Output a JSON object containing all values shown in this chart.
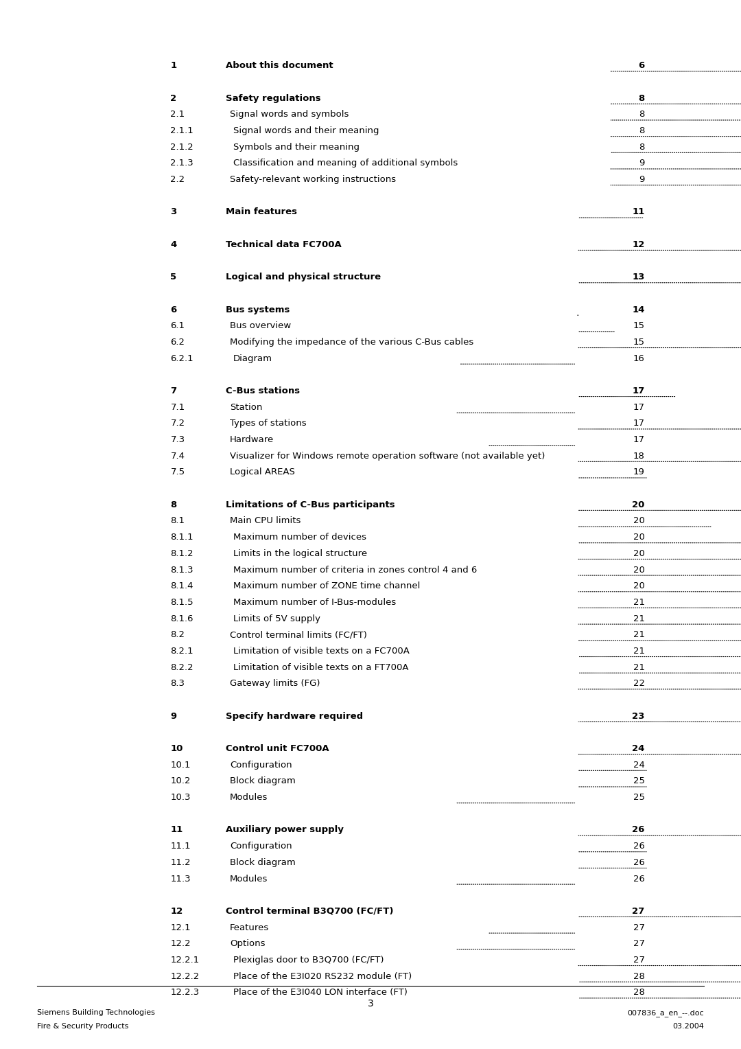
{
  "bg_color": "#ffffff",
  "text_color": "#000000",
  "page_number": "3",
  "footer_left_line1": "Siemens Building Technologies",
  "footer_left_line2": "Fire & Security Products",
  "footer_right_line1": "007836_a_en_--.doc",
  "footer_right_line2": "03.2004",
  "entries": [
    {
      "num": "1",
      "title": "About this document",
      "page": "6",
      "bold": true,
      "indent": 0
    },
    {
      "num": "",
      "title": "",
      "page": "",
      "bold": false,
      "indent": 0
    },
    {
      "num": "2",
      "title": "Safety regulations",
      "page": "8",
      "bold": true,
      "indent": 0
    },
    {
      "num": "2.1",
      "title": "Signal words and symbols",
      "page": "8",
      "bold": false,
      "indent": 1
    },
    {
      "num": "2.1.1",
      "title": "Signal words and their meaning",
      "page": "8",
      "bold": false,
      "indent": 2
    },
    {
      "num": "2.1.2",
      "title": "Symbols and their meaning",
      "page": "8",
      "bold": false,
      "indent": 2
    },
    {
      "num": "2.1.3",
      "title": "Classification and meaning of additional symbols",
      "page": "9",
      "bold": false,
      "indent": 2
    },
    {
      "num": "2.2",
      "title": "Safety-relevant working instructions",
      "page": "9",
      "bold": false,
      "indent": 1
    },
    {
      "num": "",
      "title": "",
      "page": "",
      "bold": false,
      "indent": 0
    },
    {
      "num": "3",
      "title": "Main features",
      "page": "11",
      "bold": true,
      "indent": 0
    },
    {
      "num": "",
      "title": "",
      "page": "",
      "bold": false,
      "indent": 0
    },
    {
      "num": "4",
      "title": "Technical data FC700A",
      "page": "12",
      "bold": true,
      "indent": 0
    },
    {
      "num": "",
      "title": "",
      "page": "",
      "bold": false,
      "indent": 0
    },
    {
      "num": "5",
      "title": "Logical and physical structure",
      "page": "13",
      "bold": true,
      "indent": 0
    },
    {
      "num": "",
      "title": "",
      "page": "",
      "bold": false,
      "indent": 0
    },
    {
      "num": "6",
      "title": "Bus systems",
      "page": "14",
      "bold": true,
      "indent": 0
    },
    {
      "num": "6.1",
      "title": "Bus overview",
      "page": "15",
      "bold": false,
      "indent": 1
    },
    {
      "num": "6.2",
      "title": "Modifying the impedance of the various C-Bus cables",
      "page": "15",
      "bold": false,
      "indent": 1
    },
    {
      "num": "6.2.1",
      "title": "Diagram",
      "page": "16",
      "bold": false,
      "indent": 2
    },
    {
      "num": "",
      "title": "",
      "page": "",
      "bold": false,
      "indent": 0
    },
    {
      "num": "7",
      "title": "C-Bus stations",
      "page": "17",
      "bold": true,
      "indent": 0
    },
    {
      "num": "7.1",
      "title": "Station",
      "page": "17",
      "bold": false,
      "indent": 1
    },
    {
      "num": "7.2",
      "title": "Types of stations",
      "page": "17",
      "bold": false,
      "indent": 1
    },
    {
      "num": "7.3",
      "title": "Hardware",
      "page": "17",
      "bold": false,
      "indent": 1
    },
    {
      "num": "7.4",
      "title": "Visualizer for Windows remote operation software (not available yet)",
      "page": "18",
      "bold": false,
      "indent": 1
    },
    {
      "num": "7.5",
      "title": "Logical AREAS",
      "page": "19",
      "bold": false,
      "indent": 1
    },
    {
      "num": "",
      "title": "",
      "page": "",
      "bold": false,
      "indent": 0
    },
    {
      "num": "8",
      "title": "Limitations of C-Bus participants",
      "page": "20",
      "bold": true,
      "indent": 0
    },
    {
      "num": "8.1",
      "title": "Main CPU limits",
      "page": "20",
      "bold": false,
      "indent": 1
    },
    {
      "num": "8.1.1",
      "title": "Maximum number of devices",
      "page": "20",
      "bold": false,
      "indent": 2
    },
    {
      "num": "8.1.2",
      "title": "Limits in the logical structure",
      "page": "20",
      "bold": false,
      "indent": 2
    },
    {
      "num": "8.1.3",
      "title": "Maximum number of criteria in zones control 4 and 6",
      "page": "20",
      "bold": false,
      "indent": 2
    },
    {
      "num": "8.1.4",
      "title": "Maximum number of ZONE time channel",
      "page": "20",
      "bold": false,
      "indent": 2
    },
    {
      "num": "8.1.5",
      "title": "Maximum number of I-Bus-modules",
      "page": "21",
      "bold": false,
      "indent": 2
    },
    {
      "num": "8.1.6",
      "title": "Limits of 5V supply",
      "page": "21",
      "bold": false,
      "indent": 2
    },
    {
      "num": "8.2",
      "title": "Control terminal limits (FC/FT)",
      "page": "21",
      "bold": false,
      "indent": 1
    },
    {
      "num": "8.2.1",
      "title": "Limitation of visible texts on a FC700A",
      "page": "21",
      "bold": false,
      "indent": 2
    },
    {
      "num": "8.2.2",
      "title": "Limitation of visible texts on a FT700A",
      "page": "21",
      "bold": false,
      "indent": 2
    },
    {
      "num": "8.3",
      "title": "Gateway limits (FG)",
      "page": "22",
      "bold": false,
      "indent": 1
    },
    {
      "num": "",
      "title": "",
      "page": "",
      "bold": false,
      "indent": 0
    },
    {
      "num": "9",
      "title": "Specify hardware required",
      "page": "23",
      "bold": true,
      "indent": 0
    },
    {
      "num": "",
      "title": "",
      "page": "",
      "bold": false,
      "indent": 0
    },
    {
      "num": "10",
      "title": "Control unit FC700A",
      "page": "24",
      "bold": true,
      "indent": 0
    },
    {
      "num": "10.1",
      "title": "Configuration",
      "page": "24",
      "bold": false,
      "indent": 1
    },
    {
      "num": "10.2",
      "title": "Block diagram",
      "page": "25",
      "bold": false,
      "indent": 1
    },
    {
      "num": "10.3",
      "title": "Modules",
      "page": "25",
      "bold": false,
      "indent": 1
    },
    {
      "num": "",
      "title": "",
      "page": "",
      "bold": false,
      "indent": 0
    },
    {
      "num": "11",
      "title": "Auxiliary power supply",
      "page": "26",
      "bold": true,
      "indent": 0
    },
    {
      "num": "11.1",
      "title": "Configuration",
      "page": "26",
      "bold": false,
      "indent": 1
    },
    {
      "num": "11.2",
      "title": "Block diagram",
      "page": "26",
      "bold": false,
      "indent": 1
    },
    {
      "num": "11.3",
      "title": "Modules",
      "page": "26",
      "bold": false,
      "indent": 1
    },
    {
      "num": "",
      "title": "",
      "page": "",
      "bold": false,
      "indent": 0
    },
    {
      "num": "12",
      "title": "Control terminal B3Q700 (FC/FT)",
      "page": "27",
      "bold": true,
      "indent": 0
    },
    {
      "num": "12.1",
      "title": "Features",
      "page": "27",
      "bold": false,
      "indent": 1
    },
    {
      "num": "12.2",
      "title": "Options",
      "page": "27",
      "bold": false,
      "indent": 1
    },
    {
      "num": "12.2.1",
      "title": "Plexiglas door to B3Q700 (FC/FT)",
      "page": "27",
      "bold": false,
      "indent": 2
    },
    {
      "num": "12.2.2",
      "title": "Place of the E3I020 RS232 module (FT)",
      "page": "28",
      "bold": false,
      "indent": 2
    },
    {
      "num": "12.2.3",
      "title": "Place of the E3I040 LON interface (FT)",
      "page": "28",
      "bold": false,
      "indent": 2
    }
  ]
}
